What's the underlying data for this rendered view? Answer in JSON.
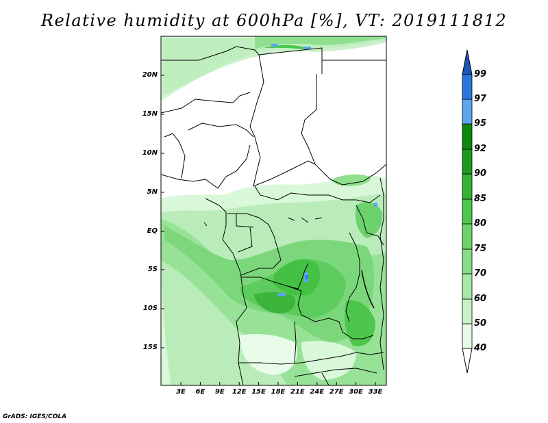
{
  "title": "Relative humidity at 600hPa [%], VT: 2019111812",
  "credit": "GrADS: IGES/COLA",
  "y_ticks": [
    "20N",
    "15N",
    "10N",
    "5N",
    "EQ",
    "5S",
    "10S",
    "15S"
  ],
  "x_ticks": [
    "3E",
    "6E",
    "9E",
    "12E",
    "15E",
    "18E",
    "21E",
    "24E",
    "27E",
    "30E",
    "33E"
  ],
  "colorbar": {
    "levels": [
      "40",
      "50",
      "60",
      "70",
      "75",
      "80",
      "85",
      "90",
      "92",
      "95",
      "97",
      "99"
    ],
    "colors": [
      "#ffffff",
      "#e6fae6",
      "#c8f2c8",
      "#a6e8a6",
      "#88dd88",
      "#6cd26c",
      "#4cc64c",
      "#34b234",
      "#1f9a1f",
      "#0f870f",
      "#5ba6ef",
      "#2a78dd",
      "#1a58b8"
    ]
  }
}
